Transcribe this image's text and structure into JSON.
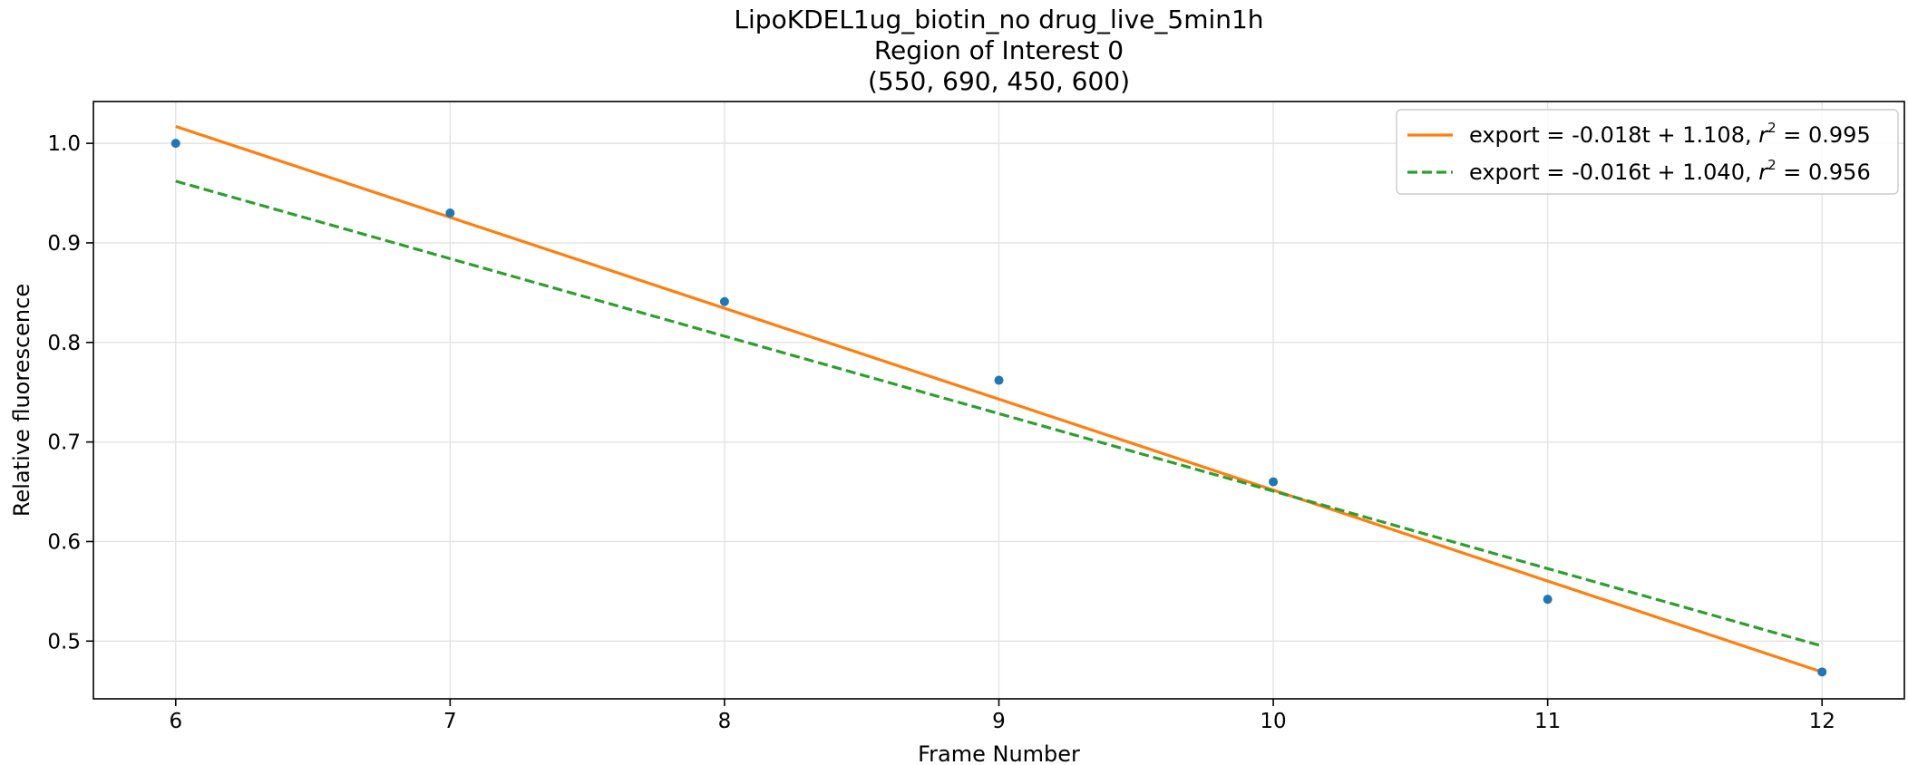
{
  "chart_data": {
    "type": "scatter",
    "title_lines": [
      "LipoKDEL1ug_biotin_no drug_live_5min1h",
      "Region of Interest 0",
      "(550, 690, 450, 600)"
    ],
    "xlabel": "Frame Number",
    "ylabel": "Relative fluorescence",
    "xlim": [
      5.7,
      12.3
    ],
    "ylim": [
      0.442,
      1.042
    ],
    "xticks": [
      6,
      7,
      8,
      9,
      10,
      11,
      12
    ],
    "yticks": [
      0.5,
      0.6,
      0.7,
      0.8,
      0.9,
      1.0
    ],
    "ytick_labels": [
      "0.5",
      "0.6",
      "0.7",
      "0.8",
      "0.9",
      "1.0"
    ],
    "grid": true,
    "points": {
      "x": [
        6,
        7,
        8,
        9,
        10,
        11,
        12
      ],
      "y": [
        1.0,
        0.93,
        0.841,
        0.762,
        0.66,
        0.542,
        0.469
      ],
      "color": "#1f77b4"
    },
    "fits": [
      {
        "label_prefix": "export = -0.018t + 1.108, ",
        "r2_value": " = 0.995",
        "color": "#ff7f0e",
        "dashed": false,
        "x": [
          6,
          12
        ],
        "y": [
          1.017,
          0.469
        ]
      },
      {
        "label_prefix": "export = -0.016t + 1.040, ",
        "r2_value": " = 0.956",
        "color": "#2ca02c",
        "dashed": true,
        "x": [
          6,
          12
        ],
        "y": [
          0.962,
          0.495
        ]
      }
    ],
    "legend_position": "top-right"
  }
}
